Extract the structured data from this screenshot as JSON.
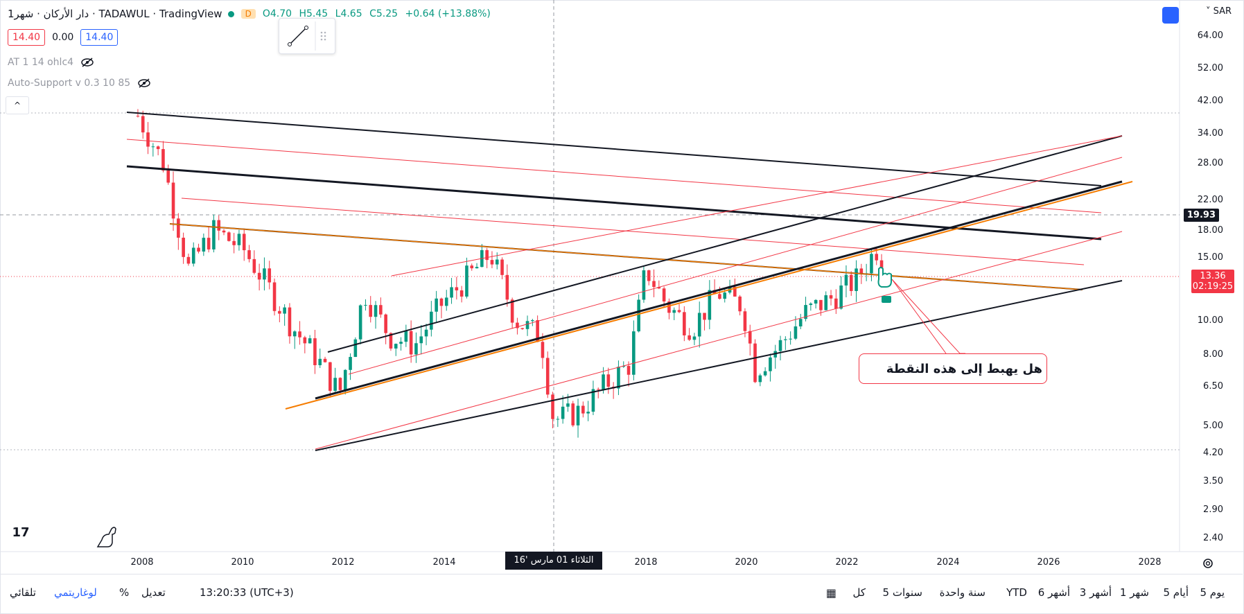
{
  "legend": {
    "symbol": "دار الأركان · شهر1 · TADAWUL · TradingView",
    "interval_flag": "D",
    "ohlc": {
      "open": "O4.70",
      "high": "H5.45",
      "low": "L4.65",
      "close": "C5.25",
      "change": "+0.64 (+13.88%)"
    },
    "bid": "14.40",
    "spread": "0.00",
    "ask": "14.40"
  },
  "indicators": [
    {
      "label": "AT 1 14 ohlc4"
    },
    {
      "label": "Auto-Support v 0.3 10 85"
    }
  ],
  "currency": "SAR",
  "price_axis": {
    "labels": [
      "64.00",
      "52.00",
      "42.00",
      "34.00",
      "28.00",
      "22.00",
      "18.00",
      "15.00",
      "10.00",
      "8.00",
      "6.50",
      "5.00",
      "4.20",
      "3.50",
      "2.90",
      "2.40"
    ],
    "crosshair_price": "19.93",
    "last_price": "13.36",
    "countdown": "02:19:25"
  },
  "time_axis": {
    "labels": [
      "2008",
      "2010",
      "2012",
      "2014",
      "2018",
      "2020",
      "2022",
      "2024",
      "2026",
      "2028"
    ],
    "crosshair_date": "الثلاثاء 01 مارس '16"
  },
  "annotation": {
    "text": "هل يهبط إلى هذه النقطة"
  },
  "bottom_bar": {
    "ranges": [
      "يوم 5",
      "أيام 5",
      "شهر 1",
      "أشهر 3",
      "أشهر 6",
      "YTD",
      "سنة واحدة",
      "سنوات 5",
      "كل"
    ],
    "clock": "13:20:33 (UTC+3)",
    "adjust": "تعديل",
    "percent": "%",
    "log": "لوغاريتمي",
    "auto": "تلقائي"
  },
  "chart_data": {
    "type": "candlestick",
    "x": [
      "2007-12",
      "2008-06",
      "2008-12",
      "2009-06",
      "2010-01",
      "2010-06",
      "2011-01",
      "2011-06",
      "2011-12",
      "2012-06",
      "2012-12",
      "2013-06",
      "2013-12",
      "2014-06",
      "2014-12",
      "2015-06",
      "2015-12",
      "2016-03",
      "2016-09",
      "2017-03",
      "2017-09",
      "2018-01",
      "2018-06",
      "2018-12",
      "2019-06",
      "2019-12",
      "2020-03",
      "2020-09",
      "2021-03",
      "2021-09",
      "2022-03",
      "2022-08",
      "2022-10"
    ],
    "close": [
      38,
      28,
      14,
      18,
      16,
      13,
      9.5,
      8,
      6.2,
      12,
      9,
      8.5,
      11,
      13,
      15.5,
      10,
      9,
      5.2,
      5.5,
      6.5,
      7.5,
      14,
      11,
      9.5,
      12,
      11,
      7.2,
      8.5,
      10.5,
      11.5,
      13,
      16,
      13.36
    ],
    "ylim": [
      2.2,
      70
    ],
    "log_scale": true,
    "colors": {
      "up": "#089981",
      "down": "#f23645"
    }
  }
}
